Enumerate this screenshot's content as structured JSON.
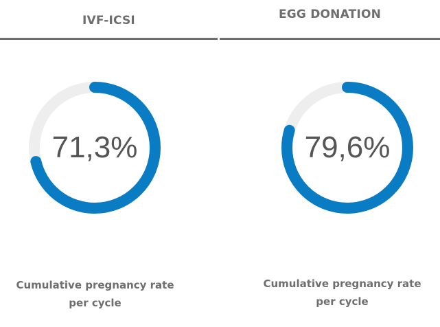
{
  "chart_data": [
    {
      "type": "donut",
      "title": "IVF-ICSI",
      "value": 71.3,
      "value_label": "71,3%",
      "max": 100,
      "caption": [
        "Cumulative pregnancy rate",
        "per cycle"
      ]
    },
    {
      "type": "donut",
      "title": "EGG DONATION",
      "value": 79.6,
      "value_label": "79,6%",
      "max": 100,
      "caption": [
        "Cumulative pregnancy rate",
        "per cycle"
      ]
    }
  ],
  "colors": {
    "progress": "#0a7cc4",
    "track": "#eeeeee",
    "text": "#555555",
    "heading": "#6e6e6e",
    "rule": "#6f6f6f"
  }
}
